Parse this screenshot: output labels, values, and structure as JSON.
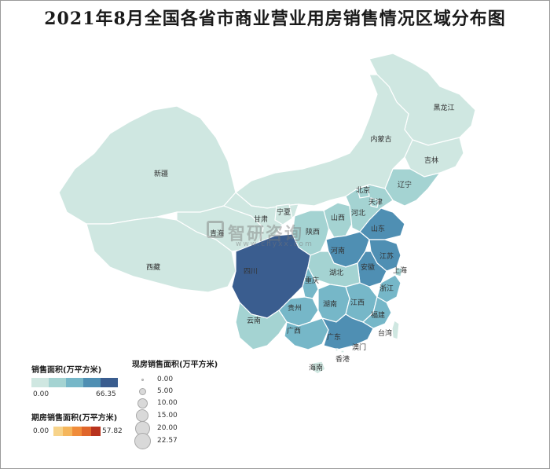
{
  "title": "2021年8月全国各省市商业营业用房销售情况区域分布图",
  "watermark": {
    "brand": "智研咨询",
    "url": "www.chyxx.com"
  },
  "colors": {
    "sales_scale": [
      "#cfe7e1",
      "#a4d3d2",
      "#76b7c8",
      "#4f8fb3",
      "#3a5d8f"
    ],
    "forward_scale": [
      "#f7d38a",
      "#f5b65c",
      "#f08c3a",
      "#e0662b",
      "#b8321d"
    ],
    "border": "#ffffff",
    "bubble_fill": "#d9d9d9"
  },
  "legends": {
    "sales": {
      "title": "销售面积(万平方米)",
      "min": "0.00",
      "max": "66.35"
    },
    "forward": {
      "title": "期房销售面积(万平方米)",
      "min": "0.00",
      "max": "57.82"
    },
    "existing": {
      "title": "现房销售面积(万平方米)",
      "steps": [
        "0.00",
        "5.00",
        "10.00",
        "15.00",
        "20.00",
        "22.57"
      ]
    }
  },
  "provinces": [
    {
      "name": "黑龙江",
      "sales_level": 0,
      "forward_level": 0
    },
    {
      "name": "吉林",
      "sales_level": 0,
      "forward_level": 0
    },
    {
      "name": "辽宁",
      "sales_level": 1,
      "forward_level": 0
    },
    {
      "name": "内蒙古",
      "sales_level": 0,
      "forward_level": 0
    },
    {
      "name": "新疆",
      "sales_level": 0,
      "forward_level": 0
    },
    {
      "name": "西藏",
      "sales_level": 0,
      "forward_level": 0
    },
    {
      "name": "青海",
      "sales_level": 0,
      "forward_level": 1
    },
    {
      "name": "甘肃",
      "sales_level": 0,
      "forward_level": 0
    },
    {
      "name": "宁夏",
      "sales_level": 0,
      "forward_level": 0
    },
    {
      "name": "陕西",
      "sales_level": 1,
      "forward_level": 0
    },
    {
      "name": "山西",
      "sales_level": 1,
      "forward_level": 0
    },
    {
      "name": "河北",
      "sales_level": 1,
      "forward_level": 0
    },
    {
      "name": "北京",
      "sales_level": 1,
      "forward_level": 0
    },
    {
      "name": "天津",
      "sales_level": 1,
      "forward_level": 1
    },
    {
      "name": "山东",
      "sales_level": 3,
      "forward_level": 2
    },
    {
      "name": "河南",
      "sales_level": 3,
      "forward_level": 2
    },
    {
      "name": "江苏",
      "sales_level": 3,
      "forward_level": 3
    },
    {
      "name": "安徽",
      "sales_level": 3,
      "forward_level": 2
    },
    {
      "name": "上海",
      "sales_level": 1,
      "forward_level": 1
    },
    {
      "name": "浙江",
      "sales_level": 2,
      "forward_level": 0
    },
    {
      "name": "湖北",
      "sales_level": 1,
      "forward_level": 0
    },
    {
      "name": "四川",
      "sales_level": 4,
      "forward_level": 4
    },
    {
      "name": "重庆",
      "sales_level": 2,
      "forward_level": 1
    },
    {
      "name": "贵州",
      "sales_level": 2,
      "forward_level": 2
    },
    {
      "name": "湖南",
      "sales_level": 2,
      "forward_level": 0
    },
    {
      "name": "江西",
      "sales_level": 2,
      "forward_level": 1
    },
    {
      "name": "福建",
      "sales_level": 2,
      "forward_level": 0
    },
    {
      "name": "云南",
      "sales_level": 1,
      "forward_level": 0
    },
    {
      "name": "广西",
      "sales_level": 2,
      "forward_level": 1
    },
    {
      "name": "广东",
      "sales_level": 3,
      "forward_level": 3
    },
    {
      "name": "海南",
      "sales_level": 0,
      "forward_level": 1
    },
    {
      "name": "台湾",
      "sales_level": 0,
      "forward_level": 0
    },
    {
      "name": "香港",
      "sales_level": 0,
      "forward_level": 0
    },
    {
      "name": "澳门",
      "sales_level": 0,
      "forward_level": 0
    }
  ]
}
